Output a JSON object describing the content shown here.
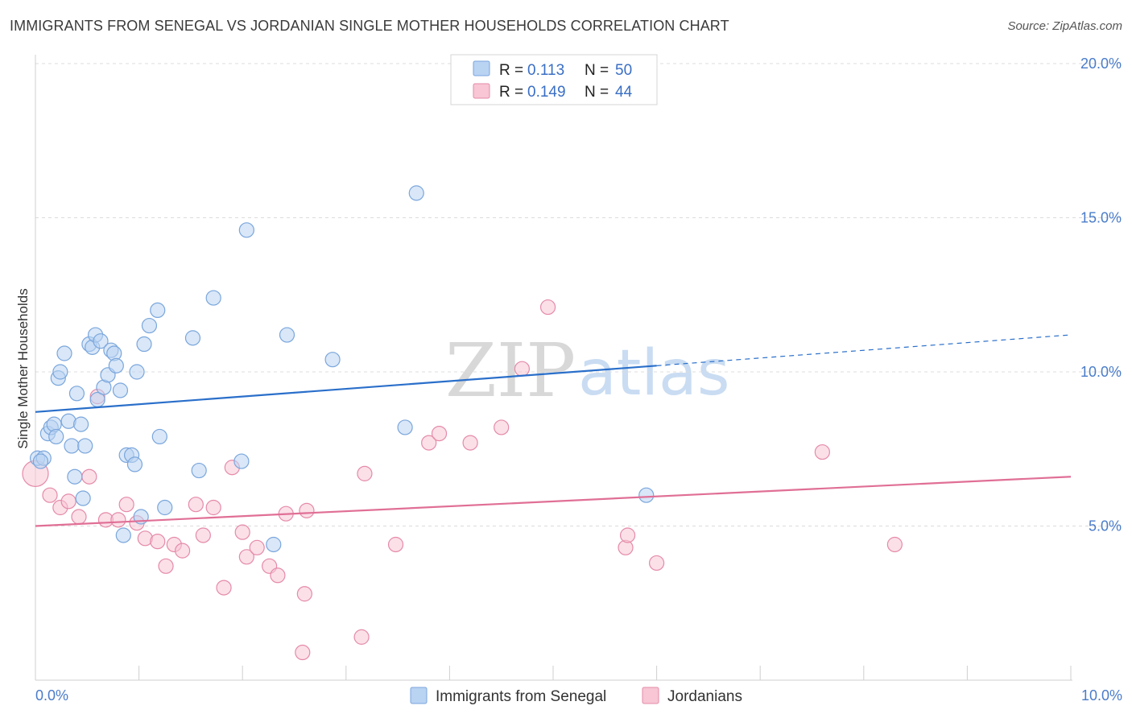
{
  "header": {
    "title": "IMMIGRANTS FROM SENEGAL VS JORDANIAN SINGLE MOTHER HOUSEHOLDS CORRELATION CHART",
    "source": "Source: ZipAtlas.com"
  },
  "watermark": {
    "zip": "ZIP",
    "atlas": "atlas"
  },
  "legend": {
    "r_label": "R =",
    "n_label": "N =",
    "rows": [
      {
        "r": "0.113",
        "n": "50",
        "color": "#a8c8f0"
      },
      {
        "r": "0.149",
        "n": "44",
        "color": "#f5b8cb"
      }
    ]
  },
  "bottom_legend": [
    {
      "label": "Immigrants from Senegal",
      "color": "#a8c8f0"
    },
    {
      "label": "Jordanians",
      "color": "#f5b8cb"
    }
  ],
  "colors": {
    "blue_fill": "#b9d3f3",
    "blue_stroke": "#7aa6dc",
    "blue_line": "#2a6fca",
    "pink_fill": "#f8c6d5",
    "pink_stroke": "#e58aa8",
    "pink_line": "#e06f96",
    "grid": "#dcdcdc"
  },
  "chart_data": {
    "type": "scatter",
    "title": "IMMIGRANTS FROM SENEGAL VS JORDANIAN SINGLE MOTHER HOUSEHOLDS CORRELATION CHART",
    "xlabel": "",
    "ylabel": "Single Mother Households",
    "xlim": [
      0,
      10
    ],
    "ylim": [
      0,
      20
    ],
    "x_tick_labels": [
      "0.0%",
      "10.0%"
    ],
    "y_ticks": [
      5,
      10,
      15,
      20
    ],
    "y_tick_labels": [
      "5.0%",
      "10.0%",
      "15.0%",
      "20.0%"
    ],
    "series": [
      {
        "name": "Immigrants from Senegal",
        "r": 0.113,
        "n": 50,
        "trend": {
          "x0": 0,
          "y0": 8.7,
          "x1": 6.0,
          "y1": 10.2,
          "dash_x1": 10.0,
          "dash_y1": 11.2
        },
        "points": [
          [
            0.02,
            7.2
          ],
          [
            0.08,
            7.2
          ],
          [
            0.12,
            8.0
          ],
          [
            0.15,
            8.2
          ],
          [
            0.18,
            8.3
          ],
          [
            0.2,
            7.9
          ],
          [
            0.22,
            9.8
          ],
          [
            0.24,
            10.0
          ],
          [
            0.28,
            10.6
          ],
          [
            0.32,
            8.4
          ],
          [
            0.35,
            7.6
          ],
          [
            0.38,
            6.6
          ],
          [
            0.4,
            9.3
          ],
          [
            0.44,
            8.3
          ],
          [
            0.46,
            5.9
          ],
          [
            0.48,
            7.6
          ],
          [
            0.52,
            10.9
          ],
          [
            0.55,
            10.8
          ],
          [
            0.58,
            11.2
          ],
          [
            0.6,
            9.1
          ],
          [
            0.63,
            11.0
          ],
          [
            0.66,
            9.5
          ],
          [
            0.7,
            9.9
          ],
          [
            0.73,
            10.7
          ],
          [
            0.76,
            10.6
          ],
          [
            0.78,
            10.2
          ],
          [
            0.82,
            9.4
          ],
          [
            0.85,
            4.7
          ],
          [
            0.88,
            7.3
          ],
          [
            0.93,
            7.3
          ],
          [
            0.96,
            7.0
          ],
          [
            0.98,
            10.0
          ],
          [
            1.02,
            5.3
          ],
          [
            1.05,
            10.9
          ],
          [
            1.1,
            11.5
          ],
          [
            1.18,
            12.0
          ],
          [
            1.2,
            7.9
          ],
          [
            1.25,
            5.6
          ],
          [
            1.52,
            11.1
          ],
          [
            1.58,
            6.8
          ],
          [
            1.72,
            12.4
          ],
          [
            1.99,
            7.1
          ],
          [
            2.04,
            14.6
          ],
          [
            2.3,
            4.4
          ],
          [
            2.43,
            11.2
          ],
          [
            2.87,
            10.4
          ],
          [
            3.57,
            8.2
          ],
          [
            3.68,
            15.8
          ],
          [
            5.9,
            6.0
          ],
          [
            0.05,
            7.1
          ]
        ]
      },
      {
        "name": "Jordanians",
        "r": 0.149,
        "n": 44,
        "trend": {
          "x0": 0,
          "y0": 5.0,
          "x1": 10.0,
          "y1": 6.6
        },
        "points": [
          [
            0.0,
            6.7
          ],
          [
            0.14,
            6.0
          ],
          [
            0.24,
            5.6
          ],
          [
            0.32,
            5.8
          ],
          [
            0.42,
            5.3
          ],
          [
            0.52,
            6.6
          ],
          [
            0.6,
            9.2
          ],
          [
            0.68,
            5.2
          ],
          [
            0.8,
            5.2
          ],
          [
            0.88,
            5.7
          ],
          [
            0.98,
            5.1
          ],
          [
            1.06,
            4.6
          ],
          [
            1.18,
            4.5
          ],
          [
            1.26,
            3.7
          ],
          [
            1.34,
            4.4
          ],
          [
            1.42,
            4.2
          ],
          [
            1.55,
            5.7
          ],
          [
            1.62,
            4.7
          ],
          [
            1.72,
            5.6
          ],
          [
            1.82,
            3.0
          ],
          [
            1.9,
            6.9
          ],
          [
            2.0,
            4.8
          ],
          [
            2.04,
            4.0
          ],
          [
            2.14,
            4.3
          ],
          [
            2.26,
            3.7
          ],
          [
            2.34,
            3.4
          ],
          [
            2.42,
            5.4
          ],
          [
            2.62,
            5.5
          ],
          [
            2.6,
            2.8
          ],
          [
            2.58,
            0.9
          ],
          [
            3.15,
            1.4
          ],
          [
            3.18,
            6.7
          ],
          [
            3.48,
            4.4
          ],
          [
            3.8,
            7.7
          ],
          [
            3.9,
            8.0
          ],
          [
            4.2,
            7.7
          ],
          [
            4.5,
            8.2
          ],
          [
            4.7,
            10.1
          ],
          [
            4.95,
            12.1
          ],
          [
            5.7,
            4.3
          ],
          [
            5.72,
            4.7
          ],
          [
            6.0,
            3.8
          ],
          [
            7.6,
            7.4
          ],
          [
            8.3,
            4.4
          ]
        ]
      }
    ]
  }
}
